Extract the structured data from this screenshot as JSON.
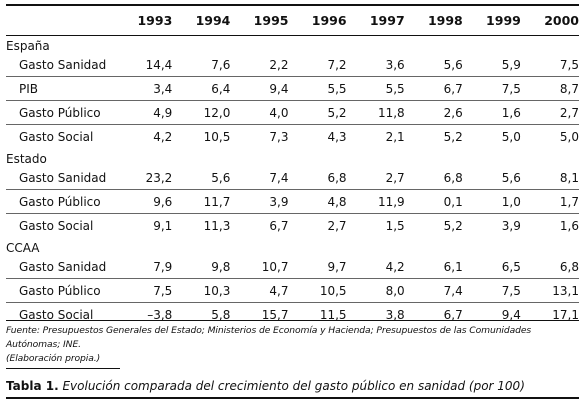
{
  "table": {
    "header": [
      "",
      "1993",
      "1994",
      "1995",
      "1996",
      "1997",
      "1998",
      "1999",
      "2000"
    ],
    "sections": [
      {
        "name": "España",
        "rows": [
          {
            "label": "Gasto Sanidad",
            "values": [
              "14,4",
              "7,6",
              "2,2",
              "7,2",
              "3,6",
              "5,6",
              "5,9",
              "7,5"
            ]
          },
          {
            "label": "PIB",
            "values": [
              "3,4",
              "6,4",
              "9,4",
              "5,5",
              "5,5",
              "6,7",
              "7,5",
              "8,7"
            ]
          },
          {
            "label": "Gasto Público",
            "values": [
              "4,9",
              "12,0",
              "4,0",
              "5,2",
              "11,8",
              "2,6",
              "1,6",
              "2,7"
            ]
          },
          {
            "label": "Gasto Social",
            "values": [
              "4,2",
              "10,5",
              "7,3",
              "4,3",
              "2,1",
              "5,2",
              "5,0",
              "5,0"
            ]
          }
        ]
      },
      {
        "name": "Estado",
        "rows": [
          {
            "label": "Gasto Sanidad",
            "values": [
              "23,2",
              "5,6",
              "7,4",
              "6,8",
              "2,7",
              "6,8",
              "5,6",
              "8,1"
            ]
          },
          {
            "label": "Gasto Público",
            "values": [
              "9,6",
              "11,7",
              "3,9",
              "4,8",
              "11,9",
              "0,1",
              "1,0",
              "1,7"
            ]
          },
          {
            "label": "Gasto Social",
            "values": [
              "9,1",
              "11,3",
              "6,7",
              "2,7",
              "1,5",
              "5,2",
              "3,9",
              "1,6"
            ]
          }
        ]
      },
      {
        "name": "CCAA",
        "rows": [
          {
            "label": "Gasto Sanidad",
            "values": [
              "7,9",
              "9,8",
              "10,7",
              "9,7",
              "4,2",
              "6,1",
              "6,5",
              "6,8"
            ]
          },
          {
            "label": "Gasto Público",
            "values": [
              "7,5",
              "10,3",
              "4,7",
              "10,5",
              "8,0",
              "7,4",
              "7,5",
              "13,1"
            ]
          },
          {
            "label": "Gasto Social",
            "values": [
              "–3,8",
              "5,8",
              "15,7",
              "11,5",
              "3,8",
              "6,7",
              "9,4",
              "17,1"
            ]
          }
        ]
      }
    ]
  },
  "source": {
    "line1": "Fuente: Presupuestos Generales del Estado; Ministerios de Economía y Hacienda; Presupuestos de las Comunidades Autónomas; INE.",
    "line2": "(Elaboración propia.)"
  },
  "caption": {
    "number": "Tabla 1.",
    "text": "Evolución comparada del crecimiento del gasto público en sanidad (por 100)"
  }
}
